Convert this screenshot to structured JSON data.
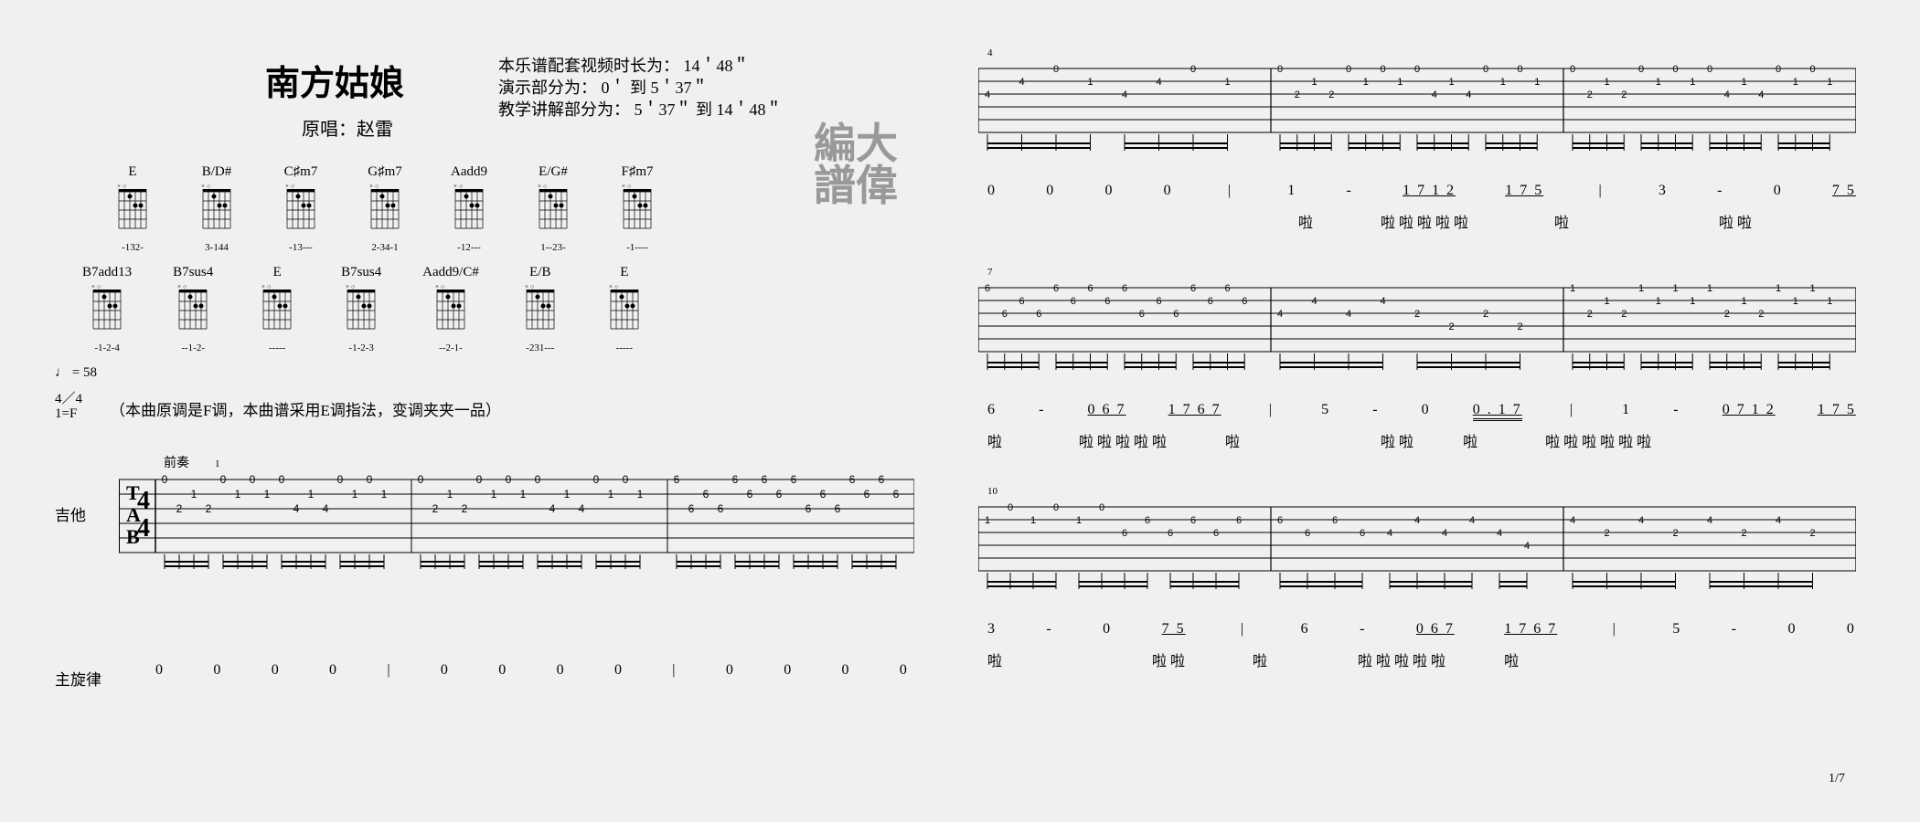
{
  "title": "南方姑娘",
  "title_fontsize": 38,
  "subtitle": "原唱：赵雷",
  "subtitle_fontsize": 20,
  "info_lines": [
    "本乐谱配套视频时长为：  14＇48＂",
    "演示部分为：  0＇ 到 5＇37＂",
    "教学讲解部分为：  5＇37＂ 到 14＇48＂"
  ],
  "watermark_lines": [
    "編大",
    "譜偉"
  ],
  "tempo_mark": "♩ = 58",
  "time_sig": "4／4",
  "key_sig": "1=F",
  "note_text": "（本曲原调是F调，本曲谱采用E调指法，变调夹夹一品）",
  "section_label_intro": "前奏",
  "staff_label_guitar": "吉他",
  "staff_label_melody": "主旋律",
  "page_number": "1/7",
  "chords_row1": [
    {
      "name": "E",
      "fingers": "-132-"
    },
    {
      "name": "B/D#",
      "fingers": "3-144"
    },
    {
      "name": "C♯m7",
      "fingers": "-13---"
    },
    {
      "name": "G♯m7",
      "fingers": "2-34-1"
    },
    {
      "name": "Aadd9",
      "fingers": "-12---"
    },
    {
      "name": "E/G#",
      "fingers": "1--23-"
    },
    {
      "name": "F♯m7",
      "fingers": "-1----"
    }
  ],
  "chords_row2": [
    {
      "name": "B7add13",
      "fingers": "-1-2-4"
    },
    {
      "name": "B7sus4",
      "fingers": "--1-2-"
    },
    {
      "name": "E",
      "fingers": "-----"
    },
    {
      "name": "B7sus4",
      "fingers": "-1-2-3"
    },
    {
      "name": "Aadd9/C#",
      "fingers": "--2-1-"
    },
    {
      "name": "E/B",
      "fingers": "-231---"
    },
    {
      "name": "E",
      "fingers": "-----"
    }
  ],
  "tab": {
    "string_labels": [
      "T",
      "A",
      "B"
    ],
    "line_color": "#000000",
    "bg_color": "#ffffff",
    "staff_height": 80,
    "measures_left": {
      "bars": 3,
      "bar1_notes": [
        {
          "s": 1,
          "f": "0"
        },
        {
          "s": 3,
          "f": "2"
        },
        {
          "s": 2,
          "f": "1"
        },
        {
          "s": 3,
          "f": "2"
        },
        {
          "s": 1,
          "f": "0"
        },
        {
          "s": 2,
          "f": "1"
        },
        {
          "s": 1,
          "f": "0"
        },
        {
          "s": 2,
          "f": "1"
        },
        {
          "s": 1,
          "f": "0"
        },
        {
          "s": 3,
          "f": "4"
        },
        {
          "s": 2,
          "f": "1"
        },
        {
          "s": 3,
          "f": "4"
        },
        {
          "s": 1,
          "f": "0"
        },
        {
          "s": 2,
          "f": "1"
        },
        {
          "s": 1,
          "f": "0"
        },
        {
          "s": 2,
          "f": "1"
        }
      ],
      "bar2_notes_same_as_bar1": true,
      "bar3_pattern": [
        {
          "s": 1,
          "f": "6"
        },
        {
          "s": 3,
          "f": "6"
        },
        {
          "s": 2,
          "f": "6"
        },
        {
          "s": 3,
          "f": "6"
        },
        {
          "s": 1,
          "f": "6"
        },
        {
          "s": 2,
          "f": "6"
        },
        {
          "s": 1,
          "f": "6"
        },
        {
          "s": 2,
          "f": "6"
        },
        {
          "s": 1,
          "f": "6"
        },
        {
          "s": 3,
          "f": "6"
        },
        {
          "s": 2,
          "f": "6"
        },
        {
          "s": 3,
          "f": "6"
        },
        {
          "s": 1,
          "f": "6"
        },
        {
          "s": 2,
          "f": "6"
        },
        {
          "s": 1,
          "f": "6"
        },
        {
          "s": 2,
          "f": "6"
        }
      ]
    },
    "melody_left": "0    0    0    0  |  0    0    0    0  |  0    0    0    0",
    "right_systems": [
      {
        "barnum": 4,
        "bars": [
          {
            "pattern": "4/4/4",
            "top": "0 1 0 1",
            "mid": "4 4",
            "low": ""
          },
          {
            "pattern": "E-ish",
            "top": "0 1 0 1 0 1 0 1 0 1 0 1",
            "mid": "2 2 4 4",
            "low": ""
          },
          {
            "pattern": "E-ish",
            "top": "0 1 0 1 0 1 0 1 0 1 0 1",
            "mid": "2 2 4 4",
            "low": ""
          }
        ],
        "melody": "0    0    0    0   |  1    -    1 7 1 2  1 7 5  |  3    -    0    7 5",
        "lyrics": "                    啦       啦啦 啦啦 啦    啦           啦 啦"
      },
      {
        "barnum": 7,
        "bars": [
          {
            "top": "6 6 6 6 6 6 6 6",
            "mid": "6 6 6 6",
            "low": ""
          },
          {
            "top": "4 4 4 4",
            "mid": "4 4 2 2",
            "low": "2"
          },
          {
            "top": "1 1 1 1 1 1 1 1 1 1 1 1",
            "mid": "2 2 2 2",
            "low": ""
          }
        ],
        "melody": "6    -   0 6 7  1 7 6 7  |  5    -    0     0 . 1 7  |  1    -    0 7 1 2  1 7 5",
        "lyrics": "啦      啦啦 啦啦啦    啦            啦 啦    啦       啦啦 啦啦 啦啦"
      },
      {
        "barnum": 10,
        "bars": [
          {
            "top": "1 0 1 0 1 0",
            "mid": "1 1 6 6 6 6 6 6",
            "low": ""
          },
          {
            "top": "6 6",
            "mid": "6 6 4 4 4 4",
            "low": "4"
          },
          {
            "top": "4 4 4 4",
            "mid": "2 4 2 4 2 4 2",
            "low": ""
          }
        ],
        "melody": "3    -    0    7 5  |  6    -    0 6 7  1 7 6 7  |  5    -    0    0",
        "lyrics": "啦           啦 啦    啦       啦啦 啦啦 啦   啦"
      }
    ]
  }
}
